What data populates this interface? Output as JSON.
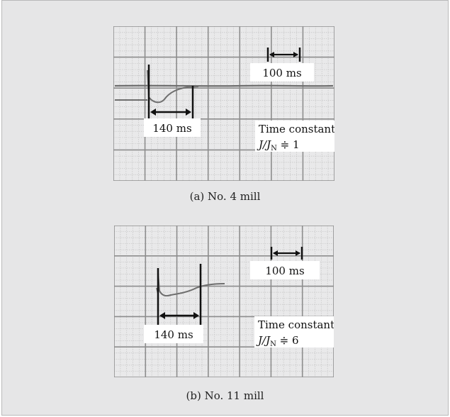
{
  "panels": [
    {
      "id": "a",
      "caption": "(a) No. 4 mill",
      "scale_label": "100 ms",
      "interval_label": "140 ms",
      "ratio_line1": "Time constant ratio",
      "ratio_line2_main": "J/J",
      "ratio_line2_sub": "N",
      "ratio_line2_rest": " ≑ 1"
    },
    {
      "id": "b",
      "caption": "(b) No. 11 mill",
      "scale_label": "100 ms",
      "interval_label": "140 ms",
      "ratio_line1": "Time constant ratio",
      "ratio_line2_main": "J/J",
      "ratio_line2_sub": "N",
      "ratio_line2_rest": " ≑ 6"
    }
  ],
  "colors": {
    "background": "#e6e6e7",
    "grid_paper": "#e9e9ea",
    "grid_major": "#8d8d8d",
    "grid_minor": "#c4c4c4",
    "trace": "#6e6e6e",
    "marker": "#111111"
  }
}
